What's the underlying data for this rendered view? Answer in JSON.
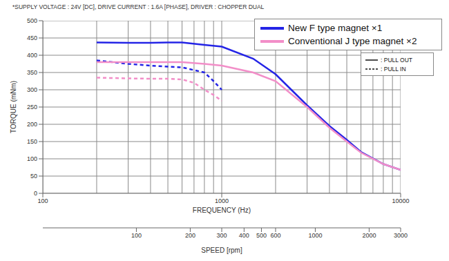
{
  "chart_data": {
    "type": "line",
    "title": "*SUPPLY VOLTAGE : 24V [DC], DRIVE CURRENT : 1.6A [PHASE], DRIVER : CHOPPER DUAL",
    "x_label": "FREQUENCY (Hz)",
    "y_label": "TORQUE (mNm)",
    "log": "x",
    "grid": true,
    "legend": "upper right",
    "xlim": [
      100,
      10000
    ],
    "xticks": [
      100,
      1000,
      10000
    ],
    "x_minor_grid": [
      200,
      300,
      400,
      500,
      600,
      700,
      800,
      900,
      2000,
      3000,
      4000,
      5000,
      6000,
      7000,
      8000,
      9000
    ],
    "ylim": [
      0,
      500
    ],
    "yticks": [
      0,
      50,
      100,
      150,
      200,
      250,
      300,
      350,
      400,
      450,
      500
    ],
    "x2_label": "SPEED [rpm]",
    "x2lim": [
      30,
      3000
    ],
    "x2ticks": [
      100,
      200,
      300,
      400,
      500,
      600,
      1000,
      2000,
      3000
    ],
    "series": [
      {
        "name": "New F type magnet ×1",
        "color": "#2424e6",
        "line_style": "solid",
        "x": [
          200,
          300,
          400,
          500,
          600,
          800,
          1000,
          1500,
          2000,
          3000,
          4000,
          5000,
          6000,
          8000,
          10000
        ],
        "values": [
          437,
          436,
          436,
          437,
          437,
          430,
          425,
          390,
          345,
          255,
          195,
          155,
          120,
          85,
          68
        ]
      },
      {
        "name": "New F type magnet ×1",
        "color": "#2424e6",
        "line_style": "dashed",
        "x": [
          200,
          300,
          400,
          500,
          600,
          800,
          900,
          1000
        ],
        "values": [
          385,
          375,
          370,
          367,
          365,
          350,
          325,
          300
        ]
      },
      {
        "name": "Conventional J type magnet ×2",
        "color": "#f28ec8",
        "line_style": "solid",
        "x": [
          200,
          300,
          400,
          500,
          600,
          800,
          1000,
          1500,
          2000,
          3000,
          4000,
          5000,
          6000,
          8000,
          10000
        ],
        "values": [
          380,
          380,
          380,
          380,
          380,
          375,
          370,
          350,
          325,
          250,
          190,
          150,
          118,
          85,
          68
        ]
      },
      {
        "name": "Conventional J type magnet ×2",
        "color": "#f28ec8",
        "line_style": "dashed",
        "x": [
          200,
          300,
          400,
          500,
          600,
          700,
          800,
          900,
          1000
        ],
        "values": [
          335,
          333,
          332,
          332,
          330,
          320,
          300,
          285,
          268
        ]
      }
    ],
    "line_style_legend": [
      {
        "line_style": "solid",
        "label": ": PULL OUT"
      },
      {
        "line_style": "dashed",
        "label": ": PULL IN"
      }
    ]
  }
}
